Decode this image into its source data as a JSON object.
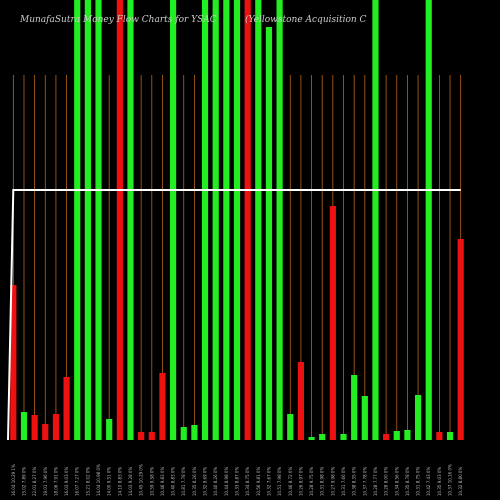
{
  "chart_data": {
    "type": "bar",
    "title": "MunafaSutra  Money Flow  Charts for YSAC",
    "subtitle": "(Yellowstone  Acquisition  C",
    "colors": {
      "background": "#000000",
      "up": "#22ee22",
      "down": "#ee1111",
      "grid": "#b8641a",
      "line": "#ffffff"
    },
    "grid": true,
    "ylim": [
      0,
      440
    ],
    "categories": [
      "16.04 10.29 1%",
      "15.02 7.89 0%",
      "22.01 8.27 0%",
      "19.01 7.96 0%",
      "18.06 7.91 0%",
      "16.03 9.03 0%",
      "16.07 7.27 0%",
      "15.21 8.02 0%",
      "14.04 10.98 0%",
      "14.00 9.51 0%",
      "14.10 8.83 0%",
      "14.03 9.28 0%",
      "10.45 10.29 0%",
      "10.59 9.58 0%",
      "10.46 9.83 0%",
      "10.40 8.83 0%",
      "10.81 7.78 0%",
      "10.35 8.26 0%",
      "10.32 9.69 0%",
      "10.40 8.26 0%",
      "10.44 8.98 0%",
      "10.33 8.87 0%",
      "10.34 8.75 0%",
      "10.56 9.81 0%",
      "10.32 7.67 0%",
      "10.51 7.98 0%",
      "10.46 8.72 0%",
      "10.26 8.97 0%",
      "10.28 9.75 0%",
      "10.31 8.98 0%",
      "10.27 9.98 0%",
      "10.31 7.66 0%",
      "10.38 8.35 0%",
      "10.37 7.78 0%",
      "10.28 7.77 0%",
      "10.28 8.00 0%",
      "10.34 8.56 0%",
      "10.35 8.78 0%",
      "10.31 8.75 0%",
      "10.42 7.43 0%",
      "10.35 9.03 0%",
      "10.37 10.16 0%",
      "10.32 8.80 0%"
    ],
    "values": [
      155,
      28,
      25,
      16,
      26,
      63,
      440,
      440,
      440,
      21,
      440,
      440,
      8,
      8,
      67,
      440,
      13,
      15,
      440,
      440,
      440,
      440,
      440,
      440,
      413,
      440,
      26,
      78,
      3,
      6,
      234,
      6,
      65,
      44,
      440,
      6,
      9,
      10,
      45,
      440,
      8,
      8,
      201
    ],
    "directions": [
      "down",
      "up",
      "down",
      "down",
      "down",
      "down",
      "up",
      "up",
      "up",
      "up",
      "down",
      "up",
      "down",
      "down",
      "down",
      "up",
      "up",
      "up",
      "up",
      "up",
      "up",
      "up",
      "down",
      "up",
      "up",
      "up",
      "up",
      "down",
      "up",
      "up",
      "down",
      "up",
      "up",
      "up",
      "up",
      "down",
      "up",
      "up",
      "up",
      "up",
      "down",
      "up",
      "down"
    ],
    "line_values": [
      250,
      250,
      250,
      250,
      250,
      250,
      250,
      250,
      250,
      250,
      250,
      250,
      250,
      250,
      250,
      250,
      250,
      250,
      250,
      250,
      250,
      250,
      250,
      250,
      250,
      250,
      250,
      250,
      250,
      250,
      250,
      250,
      250,
      250,
      250,
      250,
      250,
      250,
      250,
      250,
      250,
      250,
      250
    ],
    "line_start": 0
  }
}
